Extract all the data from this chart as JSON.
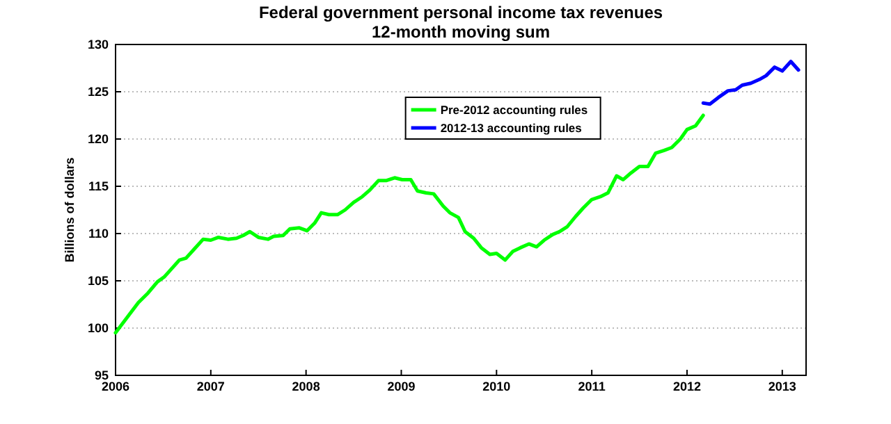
{
  "chart_data": {
    "type": "line",
    "title": "Federal government personal income tax revenues",
    "subtitle": "12-month moving sum",
    "ylabel": "Billions of dollars",
    "xlim": [
      2006,
      2013.25
    ],
    "xticks": [
      2006,
      2007,
      2008,
      2009,
      2010,
      2011,
      2012,
      2013
    ],
    "ylim": [
      95,
      130
    ],
    "yticks": [
      95,
      100,
      105,
      110,
      115,
      120,
      125,
      130
    ],
    "grid": "y",
    "legend": "top",
    "marker": "none",
    "line_style": "solid",
    "series": [
      {
        "name": "Pre-2012 accounting rules",
        "color": "#00ff00",
        "x": [
          2006.0,
          2006.15,
          2006.24,
          2006.34,
          2006.44,
          2006.51,
          2006.59,
          2006.67,
          2006.74,
          2006.83,
          2006.92,
          2007.0,
          2007.08,
          2007.18,
          2007.27,
          2007.34,
          2007.41,
          2007.5,
          2007.6,
          2007.66,
          2007.76,
          2007.83,
          2007.93,
          2008.01,
          2008.09,
          2008.16,
          2008.24,
          2008.33,
          2008.41,
          2008.5,
          2008.59,
          2008.67,
          2008.76,
          2008.84,
          2008.93,
          2009.01,
          2009.1,
          2009.17,
          2009.26,
          2009.34,
          2009.44,
          2009.51,
          2009.6,
          2009.67,
          2009.76,
          2009.84,
          2009.93,
          2010.0,
          2010.09,
          2010.17,
          2010.25,
          2010.34,
          2010.42,
          2010.5,
          2010.59,
          2010.66,
          2010.74,
          2010.83,
          2010.91,
          2011.0,
          2011.09,
          2011.17,
          2011.26,
          2011.33,
          2011.41,
          2011.5,
          2011.59,
          2011.67,
          2011.76,
          2011.84,
          2011.93,
          2012.0,
          2012.09,
          2012.17
        ],
        "values": [
          99.5,
          101.5,
          102.7,
          103.7,
          104.9,
          105.4,
          106.3,
          107.2,
          107.4,
          108.4,
          109.4,
          109.3,
          109.6,
          109.4,
          109.5,
          109.8,
          110.2,
          109.6,
          109.4,
          109.7,
          109.8,
          110.5,
          110.6,
          110.3,
          111.1,
          112.2,
          112.0,
          112.0,
          112.5,
          113.3,
          113.9,
          114.6,
          115.6,
          115.6,
          115.9,
          115.7,
          115.7,
          114.5,
          114.3,
          114.2,
          112.9,
          112.2,
          111.7,
          110.2,
          109.5,
          108.5,
          107.8,
          107.9,
          107.2,
          108.1,
          108.5,
          108.9,
          108.6,
          109.3,
          109.9,
          110.2,
          110.7,
          111.8,
          112.7,
          113.6,
          113.9,
          114.3,
          116.1,
          115.7,
          116.4,
          117.1,
          117.1,
          118.5,
          118.8,
          119.1,
          120.0,
          121.0,
          121.4,
          122.5
        ]
      },
      {
        "name": "2012-13 accounting rules",
        "color": "#0000ff",
        "x": [
          2012.17,
          2012.24,
          2012.33,
          2012.43,
          2012.51,
          2012.58,
          2012.67,
          2012.76,
          2012.83,
          2012.92,
          2013.0,
          2013.09,
          2013.17
        ],
        "values": [
          123.8,
          123.7,
          124.4,
          125.1,
          125.2,
          125.7,
          125.9,
          126.3,
          126.7,
          127.6,
          127.2,
          128.2,
          127.3
        ]
      }
    ]
  }
}
